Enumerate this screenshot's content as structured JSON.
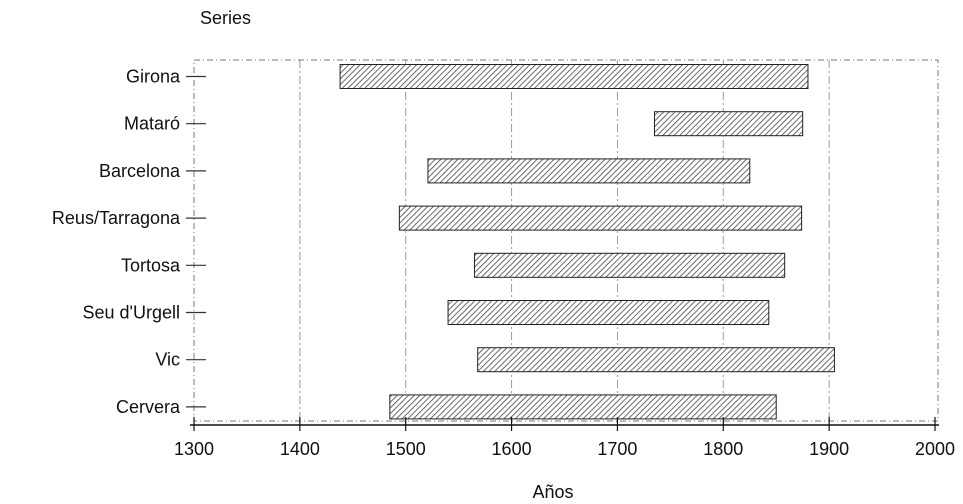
{
  "chart_data": {
    "type": "bar",
    "orientation": "horizontal",
    "kind": "range",
    "ylabel": "Series",
    "xlabel": "Años",
    "categories": [
      "Girona",
      "Mataró",
      "Barcelona",
      "Reus/Tarragona",
      "Tortosa",
      "Seu d'Urgell",
      "Vic",
      "Cervera"
    ],
    "ranges": [
      {
        "start": 1438,
        "end": 1880
      },
      {
        "start": 1735,
        "end": 1875
      },
      {
        "start": 1521,
        "end": 1825
      },
      {
        "start": 1494,
        "end": 1874
      },
      {
        "start": 1565,
        "end": 1858
      },
      {
        "start": 1540,
        "end": 1843
      },
      {
        "start": 1568,
        "end": 1905
      },
      {
        "start": 1485,
        "end": 1850
      }
    ],
    "xlim": [
      1300,
      2000
    ],
    "xticks": [
      1300,
      1400,
      1500,
      1600,
      1700,
      1800,
      1900,
      2000
    ],
    "grid": true,
    "bar_fill": "hatched",
    "bar_color": "#555555"
  }
}
